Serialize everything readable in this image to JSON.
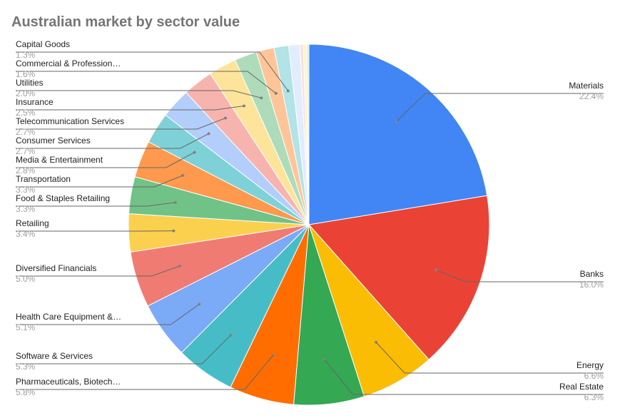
{
  "chart_data": {
    "type": "pie",
    "title": "Australian market by sector value",
    "slices": [
      {
        "label": "Materials",
        "percent_label": "22.4%",
        "value": 22.4,
        "color": "#4285f4"
      },
      {
        "label": "Banks",
        "percent_label": "16.0%",
        "value": 16.0,
        "color": "#ea4335"
      },
      {
        "label": "Energy",
        "percent_label": "6.6%",
        "value": 6.6,
        "color": "#fbbc04"
      },
      {
        "label": "Real Estate",
        "percent_label": "6.3%",
        "value": 6.3,
        "color": "#34a853"
      },
      {
        "label": "Pharmaceuticals, Biotech…",
        "percent_label": "5.8%",
        "value": 5.8,
        "color": "#ff6d01"
      },
      {
        "label": "Software & Services",
        "percent_label": "5.3%",
        "value": 5.3,
        "color": "#46bdc6"
      },
      {
        "label": "Health Care Equipment &…",
        "percent_label": "5.1%",
        "value": 5.1,
        "color": "#7baaf7"
      },
      {
        "label": "Diversified Financials",
        "percent_label": "5.0%",
        "value": 5.0,
        "color": "#f07b72"
      },
      {
        "label": "Retailing",
        "percent_label": "3.4%",
        "value": 3.4,
        "color": "#fcd04f"
      },
      {
        "label": "Food & Staples Retailing",
        "percent_label": "3.3%",
        "value": 3.3,
        "color": "#71c287"
      },
      {
        "label": "Transportation",
        "percent_label": "3.3%",
        "value": 3.3,
        "color": "#ff994d"
      },
      {
        "label": "Media & Entertainment",
        "percent_label": "2.8%",
        "value": 2.8,
        "color": "#7ed1d7"
      },
      {
        "label": "Consumer Services",
        "percent_label": "2.7%",
        "value": 2.7,
        "color": "#b3cefb"
      },
      {
        "label": "Telecommunication Services",
        "percent_label": "2.7%",
        "value": 2.7,
        "color": "#f7b4ae"
      },
      {
        "label": "Insurance",
        "percent_label": "2.5%",
        "value": 2.5,
        "color": "#fde49b"
      },
      {
        "label": "Utilities",
        "percent_label": "2.0%",
        "value": 2.0,
        "color": "#aedcba"
      },
      {
        "label": "Commercial & Profession…",
        "percent_label": "1.6%",
        "value": 1.6,
        "color": "#ffc599"
      },
      {
        "label": "Capital Goods",
        "percent_label": "1.3%",
        "value": 1.3,
        "color": "#b2e3e6"
      },
      {
        "label": "",
        "percent_label": "",
        "value": 1.0,
        "color": "#e1ecfd"
      },
      {
        "label": "",
        "percent_label": "",
        "value": 0.3,
        "color": "#fbe0de"
      },
      {
        "label": "",
        "percent_label": "",
        "value": 0.3,
        "color": "#fff3cd"
      },
      {
        "label": "",
        "percent_label": "",
        "value": 0.2,
        "color": "#d6eedc"
      }
    ]
  }
}
